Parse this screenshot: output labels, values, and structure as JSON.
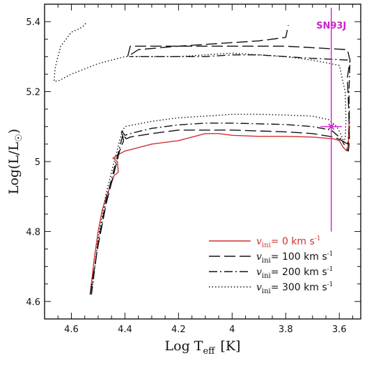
{
  "chart_data": {
    "type": "line",
    "xlabel_main": "Log T",
    "xlabel_sub": "eff",
    "xlabel_unit": "[K]",
    "ylabel_main": "Log(L/L",
    "ylabel_sym": "☉",
    "ylabel_close": ")",
    "xlim": [
      4.7,
      3.52
    ],
    "ylim": [
      4.55,
      5.45
    ],
    "x_reversed": true,
    "grid": false,
    "legend_position": "bottom-right",
    "x_ticks": [
      {
        "value": 4.6,
        "label": "4.6"
      },
      {
        "value": 4.4,
        "label": "4.4"
      },
      {
        "value": 4.2,
        "label": "4.2"
      },
      {
        "value": 4.0,
        "label": "4"
      },
      {
        "value": 3.8,
        "label": "3.8"
      },
      {
        "value": 3.6,
        "label": "3.6"
      }
    ],
    "y_ticks": [
      {
        "value": 4.6,
        "label": "4.6"
      },
      {
        "value": 4.8,
        "label": "4.8"
      },
      {
        "value": 5.0,
        "label": "5"
      },
      {
        "value": 5.2,
        "label": "5.2"
      },
      {
        "value": 5.4,
        "label": "5.4"
      }
    ],
    "series": [
      {
        "name": "v_ini = 0 km s^-1",
        "legend": {
          "v": "v",
          "sub": "ini",
          "rest": "=  0  km s",
          "sup": "-1"
        },
        "color": "#d0312d",
        "dash": "",
        "x": [
          4.53,
          4.515,
          4.5,
          4.485,
          4.47,
          4.455,
          4.445,
          4.44,
          4.425,
          4.428,
          4.445,
          4.425,
          4.4,
          4.35,
          4.3,
          4.2,
          4.1,
          4.05,
          4.0,
          3.9,
          3.8,
          3.7,
          3.62,
          3.6,
          3.585,
          3.572,
          3.566,
          3.563
        ],
        "y": [
          4.62,
          4.72,
          4.8,
          4.86,
          4.9,
          4.93,
          4.95,
          4.96,
          4.97,
          5.0,
          5.01,
          5.02,
          5.03,
          5.04,
          5.05,
          5.06,
          5.08,
          5.08,
          5.075,
          5.072,
          5.072,
          5.07,
          5.065,
          5.06,
          5.04,
          5.03,
          5.05,
          5.13
        ]
      },
      {
        "name": "v_ini = 100 km s^-1",
        "legend": {
          "v": "v",
          "sub": "ini",
          "rest": "=  100  km s",
          "sup": "-1"
        },
        "color": "#111111",
        "dash": "16,6",
        "x": [
          4.53,
          4.5,
          4.47,
          4.44,
          4.42,
          4.405,
          4.41,
          4.395,
          4.38,
          4.3,
          4.2,
          4.0,
          3.8,
          3.7,
          3.62,
          3.59,
          3.575,
          3.566,
          3.562,
          3.565,
          3.57,
          3.56,
          3.57,
          3.8,
          3.9,
          4.0,
          4.1,
          4.2,
          4.3,
          4.38,
          4.39,
          4.35,
          4.2,
          4.0,
          3.9,
          3.8,
          3.79
        ],
        "y": [
          4.62,
          4.76,
          4.88,
          4.97,
          5.03,
          5.06,
          5.08,
          5.065,
          5.07,
          5.08,
          5.09,
          5.09,
          5.085,
          5.08,
          5.07,
          5.06,
          5.04,
          5.03,
          5.06,
          5.15,
          5.24,
          5.29,
          5.32,
          5.33,
          5.33,
          5.33,
          5.33,
          5.33,
          5.33,
          5.33,
          5.3,
          5.32,
          5.33,
          5.34,
          5.345,
          5.355,
          5.39
        ]
      },
      {
        "name": "v_ini = 200 km s^-1",
        "legend": {
          "v": "v",
          "sub": "ini",
          "rest": "=  200  km s",
          "sup": "-1"
        },
        "color": "#111111",
        "dash": "12,4,2,4",
        "x": [
          4.525,
          4.5,
          4.47,
          4.44,
          4.42,
          4.41,
          4.415,
          4.4,
          4.38,
          4.3,
          4.2,
          4.1,
          4.0,
          3.9,
          3.8,
          3.7,
          3.63,
          3.6,
          3.58,
          3.568,
          3.562,
          3.564,
          3.56,
          3.7,
          3.8,
          3.9,
          4.0,
          4.1,
          4.2,
          4.3,
          4.38
        ],
        "y": [
          4.62,
          4.77,
          4.89,
          4.98,
          5.04,
          5.07,
          5.09,
          5.075,
          5.08,
          5.095,
          5.105,
          5.11,
          5.11,
          5.108,
          5.106,
          5.1,
          5.09,
          5.07,
          5.055,
          5.05,
          5.1,
          5.2,
          5.29,
          5.295,
          5.3,
          5.305,
          5.305,
          5.3,
          5.3,
          5.3,
          5.3
        ]
      },
      {
        "name": "v_ini = 300 km s^-1",
        "legend": {
          "v": "v",
          "sub": "ini",
          "rest": "=  300  km s",
          "sup": "-1"
        },
        "color": "#111111",
        "dash": "1.5,3",
        "x": [
          4.525,
          4.5,
          4.47,
          4.44,
          4.42,
          4.41,
          4.4,
          4.3,
          4.2,
          4.1,
          4.0,
          3.9,
          3.8,
          3.7,
          3.64,
          3.61,
          3.595,
          3.585,
          3.578,
          3.575,
          3.578,
          3.6,
          3.7,
          3.8,
          3.9,
          4.0,
          4.1,
          4.2,
          4.3,
          4.4,
          4.5,
          4.6,
          4.65,
          4.665,
          4.66,
          4.64,
          4.6,
          4.57,
          4.55,
          4.545
        ],
        "y": [
          4.62,
          4.78,
          4.91,
          5.0,
          5.06,
          5.085,
          5.1,
          5.115,
          5.125,
          5.13,
          5.135,
          5.135,
          5.133,
          5.13,
          5.12,
          5.1,
          5.08,
          5.06,
          5.065,
          5.12,
          5.2,
          5.275,
          5.29,
          5.3,
          5.305,
          5.31,
          5.305,
          5.3,
          5.3,
          5.3,
          5.28,
          5.25,
          5.23,
          5.23,
          5.27,
          5.33,
          5.37,
          5.38,
          5.39,
          5.4
        ]
      }
    ],
    "annotation": {
      "label": "SN93J",
      "color": "#cc22cc",
      "x": 3.63,
      "y": 5.1,
      "x_err": [
        3.59,
        3.67
      ],
      "y_err": [
        4.8,
        5.44
      ]
    }
  }
}
